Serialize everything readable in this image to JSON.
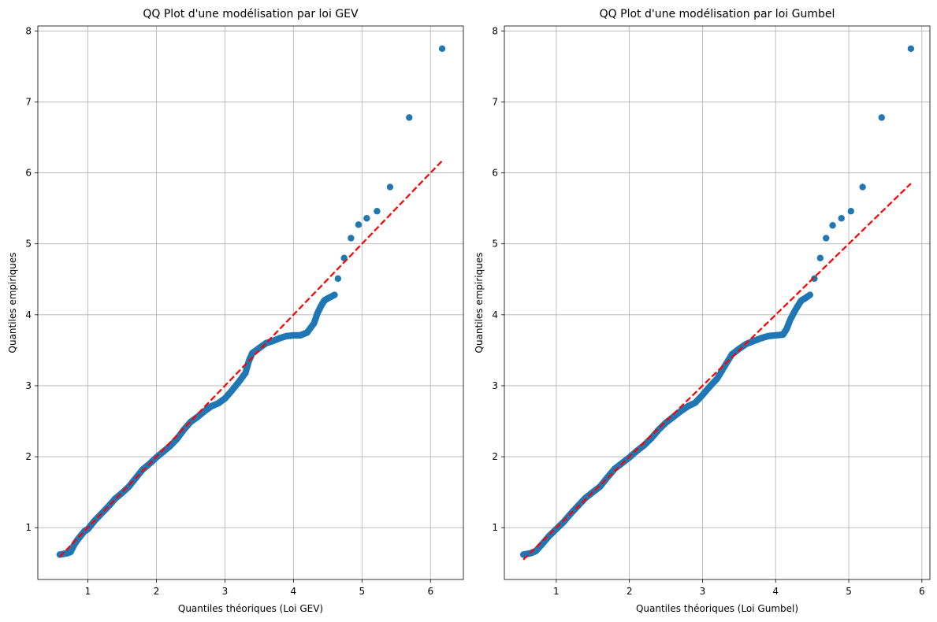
{
  "chart_data": [
    {
      "type": "scatter",
      "title": "QQ Plot d'une modélisation par loi GEV",
      "xlabel": "Quantiles théoriques (Loi GEV)",
      "ylabel": "Quantiles empiriques",
      "xlim": [
        0.27,
        6.48
      ],
      "ylim": [
        0.27,
        8.07
      ],
      "xticks": [
        1,
        2,
        3,
        4,
        5,
        6
      ],
      "yticks": [
        1,
        2,
        3,
        4,
        5,
        6,
        7,
        8
      ],
      "grid": true,
      "marker_color": "#1f77b4",
      "reference_line": {
        "style": "dashed",
        "color": "#ff0000",
        "from": [
          0.59,
          0.59
        ],
        "to": [
          6.17,
          6.17
        ]
      },
      "curve_points": [
        [
          0.59,
          0.62
        ],
        [
          0.7,
          0.64
        ],
        [
          0.75,
          0.66
        ],
        [
          0.8,
          0.76
        ],
        [
          0.85,
          0.83
        ],
        [
          0.9,
          0.89
        ],
        [
          0.95,
          0.95
        ],
        [
          1.0,
          0.98
        ],
        [
          1.05,
          1.04
        ],
        [
          1.1,
          1.1
        ],
        [
          1.2,
          1.2
        ],
        [
          1.3,
          1.3
        ],
        [
          1.4,
          1.41
        ],
        [
          1.5,
          1.49
        ],
        [
          1.6,
          1.58
        ],
        [
          1.7,
          1.7
        ],
        [
          1.8,
          1.82
        ],
        [
          1.9,
          1.9
        ],
        [
          2.0,
          1.99
        ],
        [
          2.1,
          2.07
        ],
        [
          2.2,
          2.15
        ],
        [
          2.3,
          2.25
        ],
        [
          2.4,
          2.38
        ],
        [
          2.5,
          2.49
        ],
        [
          2.6,
          2.56
        ],
        [
          2.7,
          2.64
        ],
        [
          2.8,
          2.71
        ],
        [
          2.9,
          2.75
        ],
        [
          3.0,
          2.82
        ],
        [
          3.1,
          2.93
        ],
        [
          3.2,
          3.05
        ],
        [
          3.3,
          3.18
        ],
        [
          3.35,
          3.35
        ],
        [
          3.4,
          3.46
        ],
        [
          3.5,
          3.53
        ],
        [
          3.6,
          3.6
        ],
        [
          3.7,
          3.63
        ],
        [
          3.8,
          3.67
        ],
        [
          3.9,
          3.7
        ],
        [
          4.0,
          3.71
        ],
        [
          4.1,
          3.71
        ],
        [
          4.2,
          3.75
        ],
        [
          4.3,
          3.88
        ],
        [
          4.35,
          4.02
        ],
        [
          4.4,
          4.12
        ],
        [
          4.45,
          4.2
        ],
        [
          4.5,
          4.23
        ],
        [
          4.6,
          4.28
        ]
      ],
      "tail_points": [
        [
          4.65,
          4.51
        ],
        [
          4.74,
          4.8
        ],
        [
          4.84,
          5.08
        ],
        [
          4.95,
          5.27
        ],
        [
          5.07,
          5.36
        ],
        [
          5.22,
          5.46
        ],
        [
          5.41,
          5.8
        ],
        [
          5.69,
          6.78
        ],
        [
          6.17,
          7.75
        ]
      ]
    },
    {
      "type": "scatter",
      "title": "QQ Plot d'une modélisation par loi Gumbel",
      "xlabel": "Quantiles théoriques (Loi Gumbel)",
      "ylabel": "Quantiles empiriques",
      "xlim": [
        0.29,
        6.11
      ],
      "ylim": [
        0.27,
        8.07
      ],
      "xticks": [
        1,
        2,
        3,
        4,
        5,
        6
      ],
      "yticks": [
        1,
        2,
        3,
        4,
        5,
        6,
        7,
        8
      ],
      "grid": true,
      "marker_color": "#1f77b4",
      "reference_line": {
        "style": "dashed",
        "color": "#ff0000",
        "from": [
          0.55,
          0.55
        ],
        "to": [
          5.85,
          5.85
        ]
      },
      "curve_points": [
        [
          0.55,
          0.62
        ],
        [
          0.65,
          0.64
        ],
        [
          0.72,
          0.67
        ],
        [
          0.8,
          0.76
        ],
        [
          0.9,
          0.88
        ],
        [
          1.0,
          0.98
        ],
        [
          1.1,
          1.08
        ],
        [
          1.2,
          1.2
        ],
        [
          1.3,
          1.31
        ],
        [
          1.4,
          1.42
        ],
        [
          1.5,
          1.5
        ],
        [
          1.6,
          1.58
        ],
        [
          1.7,
          1.71
        ],
        [
          1.8,
          1.83
        ],
        [
          1.9,
          1.91
        ],
        [
          2.0,
          1.99
        ],
        [
          2.1,
          2.08
        ],
        [
          2.2,
          2.16
        ],
        [
          2.3,
          2.26
        ],
        [
          2.4,
          2.38
        ],
        [
          2.5,
          2.48
        ],
        [
          2.6,
          2.56
        ],
        [
          2.7,
          2.64
        ],
        [
          2.8,
          2.71
        ],
        [
          2.9,
          2.76
        ],
        [
          3.0,
          2.87
        ],
        [
          3.1,
          2.99
        ],
        [
          3.2,
          3.1
        ],
        [
          3.3,
          3.27
        ],
        [
          3.4,
          3.44
        ],
        [
          3.5,
          3.52
        ],
        [
          3.6,
          3.59
        ],
        [
          3.7,
          3.63
        ],
        [
          3.8,
          3.67
        ],
        [
          3.9,
          3.7
        ],
        [
          4.0,
          3.71
        ],
        [
          4.1,
          3.72
        ],
        [
          4.15,
          3.8
        ],
        [
          4.2,
          3.93
        ],
        [
          4.25,
          4.03
        ],
        [
          4.3,
          4.12
        ],
        [
          4.35,
          4.2
        ],
        [
          4.4,
          4.23
        ],
        [
          4.47,
          4.28
        ]
      ],
      "tail_points": [
        [
          4.53,
          4.51
        ],
        [
          4.61,
          4.8
        ],
        [
          4.69,
          5.08
        ],
        [
          4.78,
          5.26
        ],
        [
          4.9,
          5.36
        ],
        [
          5.03,
          5.46
        ],
        [
          5.19,
          5.8
        ],
        [
          5.45,
          6.78
        ],
        [
          5.85,
          7.75
        ]
      ]
    }
  ]
}
